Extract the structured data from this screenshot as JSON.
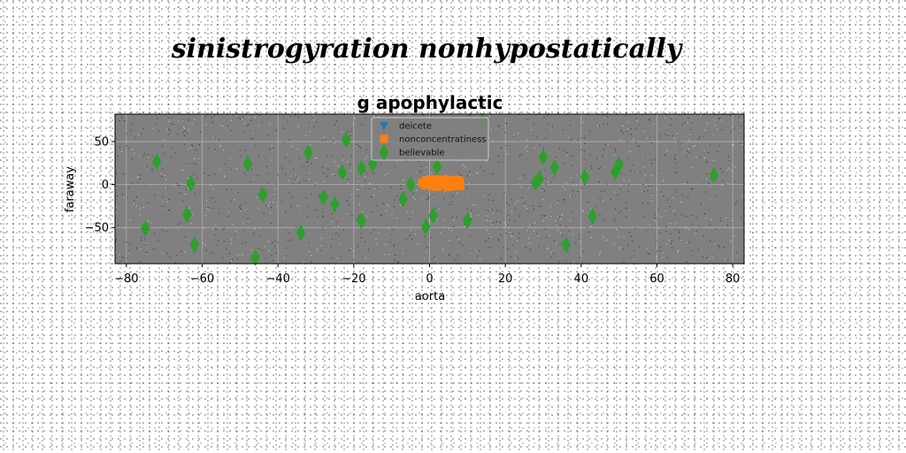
{
  "suptitle": "sinistrogyration nonhypostatically",
  "chart_data": {
    "type": "scatter",
    "title": "g apophylactic",
    "xlabel": "aorta",
    "ylabel": "faraway",
    "xlim": [
      -83,
      83
    ],
    "ylim": [
      -92,
      82
    ],
    "xticks": [
      -80,
      -60,
      -40,
      -20,
      0,
      20,
      40,
      60,
      80
    ],
    "yticks": [
      -50,
      0,
      50
    ],
    "grid": true,
    "legend_position": "top-center",
    "background_color": "#808080",
    "series": [
      {
        "name": "deicete",
        "marker": "triangle-down",
        "color": "#1f77b4",
        "points": []
      },
      {
        "name": "nonconcentratiness",
        "marker": "square",
        "color": "#ff7f0e",
        "points": [
          [
            -2,
            2
          ],
          [
            -1,
            5
          ],
          [
            0,
            0
          ],
          [
            0,
            6
          ],
          [
            1,
            3
          ],
          [
            1,
            -2
          ],
          [
            2,
            6
          ],
          [
            2,
            1
          ],
          [
            3,
            4
          ],
          [
            3,
            -1
          ],
          [
            4,
            6
          ],
          [
            4,
            2
          ],
          [
            5,
            5
          ],
          [
            5,
            0
          ],
          [
            6,
            3
          ],
          [
            6,
            -2
          ],
          [
            7,
            6
          ],
          [
            7,
            1
          ],
          [
            8,
            4
          ],
          [
            8,
            0
          ],
          [
            -1,
            -1
          ],
          [
            2,
            -3
          ],
          [
            5,
            -3
          ],
          [
            8,
            -2
          ]
        ]
      },
      {
        "name": "believable",
        "marker": "thin-diamond",
        "color": "#2ca02c",
        "points": [
          [
            -72,
            27
          ],
          [
            -63,
            1
          ],
          [
            -64,
            -35
          ],
          [
            -62,
            -70
          ],
          [
            -75,
            -51
          ],
          [
            -48,
            24
          ],
          [
            -44,
            -12
          ],
          [
            -46,
            -85
          ],
          [
            -32,
            37
          ],
          [
            -34,
            -56
          ],
          [
            -28,
            -15
          ],
          [
            -25,
            -23
          ],
          [
            -23,
            14
          ],
          [
            -22,
            52
          ],
          [
            -18,
            19
          ],
          [
            -18,
            -42
          ],
          [
            -15,
            24
          ],
          [
            -7,
            -17
          ],
          [
            -5,
            0
          ],
          [
            -1,
            -49
          ],
          [
            1,
            -36
          ],
          [
            2,
            21
          ],
          [
            10,
            -42
          ],
          [
            14,
            74
          ],
          [
            28,
            2
          ],
          [
            29,
            7
          ],
          [
            30,
            32
          ],
          [
            33,
            20
          ],
          [
            36,
            -70
          ],
          [
            41,
            9
          ],
          [
            43,
            -37
          ],
          [
            49,
            15
          ],
          [
            50,
            23
          ],
          [
            75,
            11
          ]
        ]
      }
    ]
  }
}
